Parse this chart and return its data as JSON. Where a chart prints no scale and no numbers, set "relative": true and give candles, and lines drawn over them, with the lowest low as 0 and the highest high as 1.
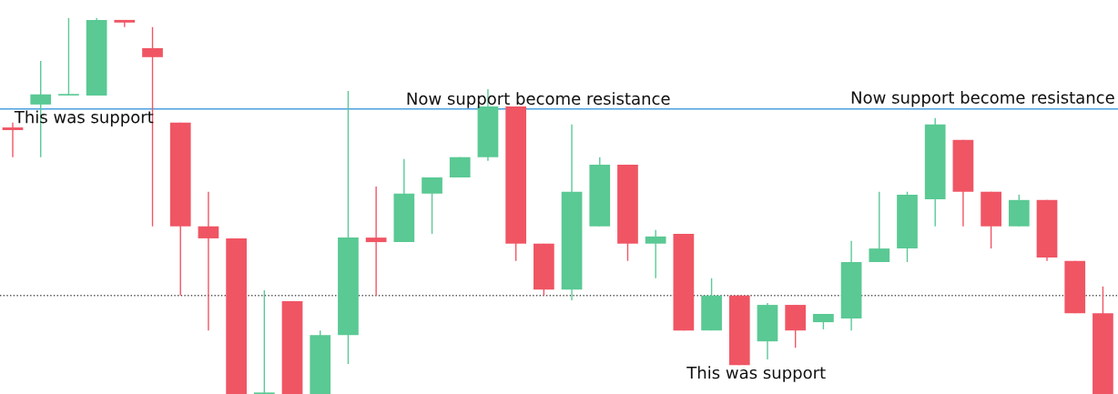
{
  "chart_data": {
    "type": "candlestick",
    "relative": true,
    "categories": [
      null,
      null,
      null,
      null,
      null,
      null,
      null,
      null,
      null,
      null,
      null,
      null,
      null,
      null,
      null,
      null,
      null,
      null,
      null,
      null,
      null,
      null,
      null,
      null,
      null,
      null,
      null,
      null,
      null,
      null,
      null,
      null,
      null,
      null,
      null,
      null,
      null,
      null,
      null,
      null
    ],
    "ohlc": [
      [
        0.709,
        0.722,
        0.63,
        0.702
      ],
      [
        0.77,
        0.886,
        0.63,
        0.797
      ],
      [
        0.794,
        1.0,
        0.794,
        0.797
      ],
      [
        0.794,
        1.0,
        0.794,
        0.995
      ],
      [
        0.995,
        0.995,
        0.976,
        0.988
      ],
      [
        0.92,
        0.976,
        0.446,
        0.896
      ],
      [
        0.722,
        0.722,
        0.262,
        0.446
      ],
      [
        0.446,
        0.538,
        0.169,
        0.414
      ],
      [
        0.414,
        0.414,
        0.0,
        0.0
      ],
      [
        0.0,
        0.276,
        0.0,
        0.002
      ],
      [
        0.247,
        0.247,
        0.0,
        0.0
      ],
      [
        0.0,
        0.169,
        0.0,
        0.157
      ],
      [
        0.157,
        0.806,
        0.08,
        0.416
      ],
      [
        0.416,
        0.552,
        0.262,
        0.404
      ],
      [
        0.404,
        0.625,
        0.404,
        0.533
      ],
      [
        0.533,
        0.576,
        0.426,
        0.576
      ],
      [
        0.576,
        0.63,
        0.576,
        0.63
      ],
      [
        0.63,
        0.811,
        0.62,
        0.765
      ],
      [
        0.765,
        0.765,
        0.354,
        0.4
      ],
      [
        0.4,
        0.4,
        0.262,
        0.278
      ],
      [
        0.278,
        0.717,
        0.249,
        0.538
      ],
      [
        0.446,
        0.63,
        0.446,
        0.61
      ],
      [
        0.61,
        0.61,
        0.354,
        0.4
      ],
      [
        0.4,
        0.436,
        0.308,
        0.419
      ],
      [
        0.426,
        0.426,
        0.169,
        0.169
      ],
      [
        0.169,
        0.308,
        0.169,
        0.262
      ],
      [
        0.262,
        0.262,
        0.077,
        0.077
      ],
      [
        0.14,
        0.242,
        0.092,
        0.237
      ],
      [
        0.237,
        0.237,
        0.123,
        0.169
      ],
      [
        0.191,
        0.213,
        0.172,
        0.213
      ],
      [
        0.201,
        0.407,
        0.169,
        0.351
      ],
      [
        0.351,
        0.538,
        0.351,
        0.387
      ],
      [
        0.387,
        0.538,
        0.351,
        0.53
      ],
      [
        0.518,
        0.734,
        0.446,
        0.717
      ],
      [
        0.676,
        0.676,
        0.446,
        0.538
      ],
      [
        0.538,
        0.538,
        0.387,
        0.446
      ],
      [
        0.446,
        0.53,
        0.446,
        0.516
      ],
      [
        0.516,
        0.516,
        0.354,
        0.363
      ],
      [
        0.354,
        0.354,
        0.215,
        0.215
      ],
      [
        0.215,
        0.286,
        0.0,
        0.0
      ]
    ],
    "colors": [
      "#f05564",
      "#5ac994",
      "#5ac994",
      "#5ac994",
      "#f05564",
      "#f05564",
      "#f05564",
      "#f05564",
      "#f05564",
      "#5ac994",
      "#f05564",
      "#5ac994",
      "#5ac994",
      "#f05564",
      "#5ac994",
      "#5ac994",
      "#5ac994",
      "#5ac994",
      "#f05564",
      "#f05564",
      "#5ac994",
      "#5ac994",
      "#f05564",
      "#5ac994",
      "#f05564",
      "#5ac994",
      "#f05564",
      "#5ac994",
      "#f05564",
      "#5ac994",
      "#5ac994",
      "#5ac994",
      "#5ac994",
      "#5ac994",
      "#f05564",
      "#f05564",
      "#5ac994",
      "#f05564",
      "#f05564",
      "#f05564"
    ],
    "ref_lines": [
      {
        "axis": "y",
        "value": 0.758,
        "color": "#4a9fe0",
        "line_style": "solid"
      },
      {
        "axis": "y",
        "value": 0.262,
        "color": "#555555",
        "line_style": "dotted"
      }
    ],
    "annotations": [
      "This was support",
      "Now support become resistance",
      "Now support become resistance",
      "This was support"
    ]
  }
}
